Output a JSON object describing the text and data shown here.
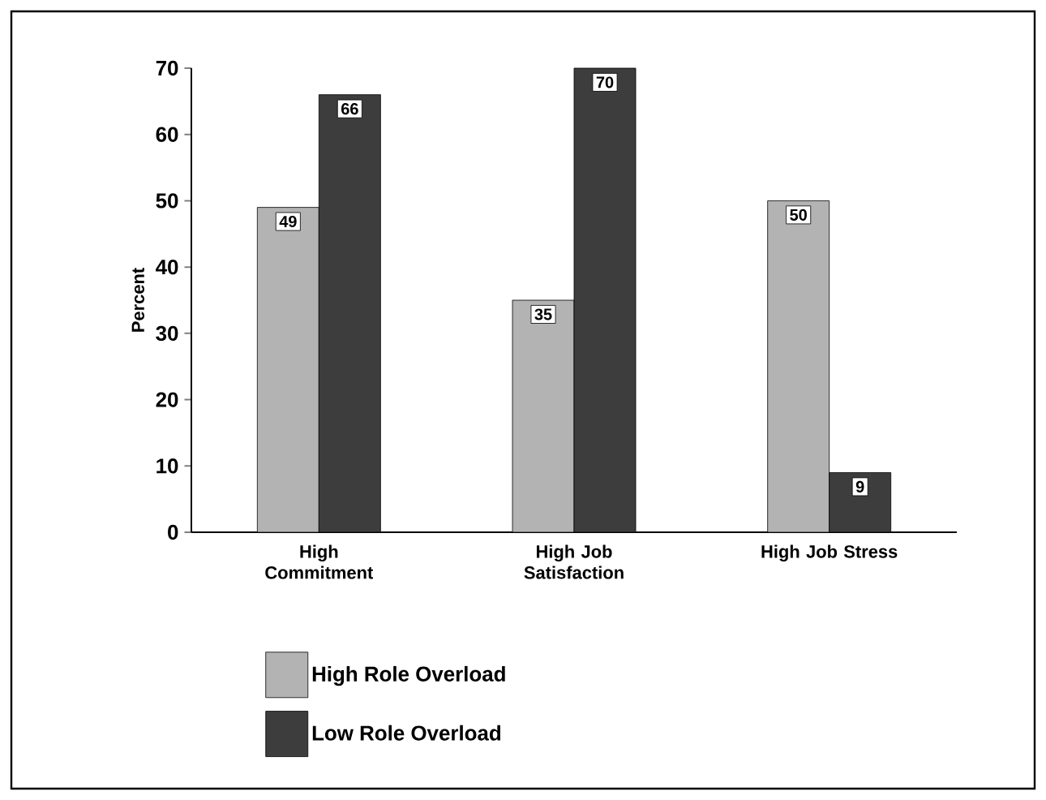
{
  "chart_data": {
    "type": "bar",
    "ylabel": "Percent",
    "categories": [
      "High Commitment",
      "High Job Satisfaction",
      "High Job Stress"
    ],
    "series": [
      {
        "name": "High Role Overload",
        "color": "#b3b3b3",
        "values": [
          49,
          35,
          50
        ]
      },
      {
        "name": "Low Role Overload",
        "color": "#3d3d3d",
        "values": [
          66,
          70,
          9
        ]
      }
    ],
    "ylim": [
      0,
      70
    ],
    "yticks": [
      0,
      10,
      20,
      30,
      40,
      50,
      60,
      70
    ],
    "data_labels": true,
    "grid": false,
    "legend": "bottom"
  }
}
